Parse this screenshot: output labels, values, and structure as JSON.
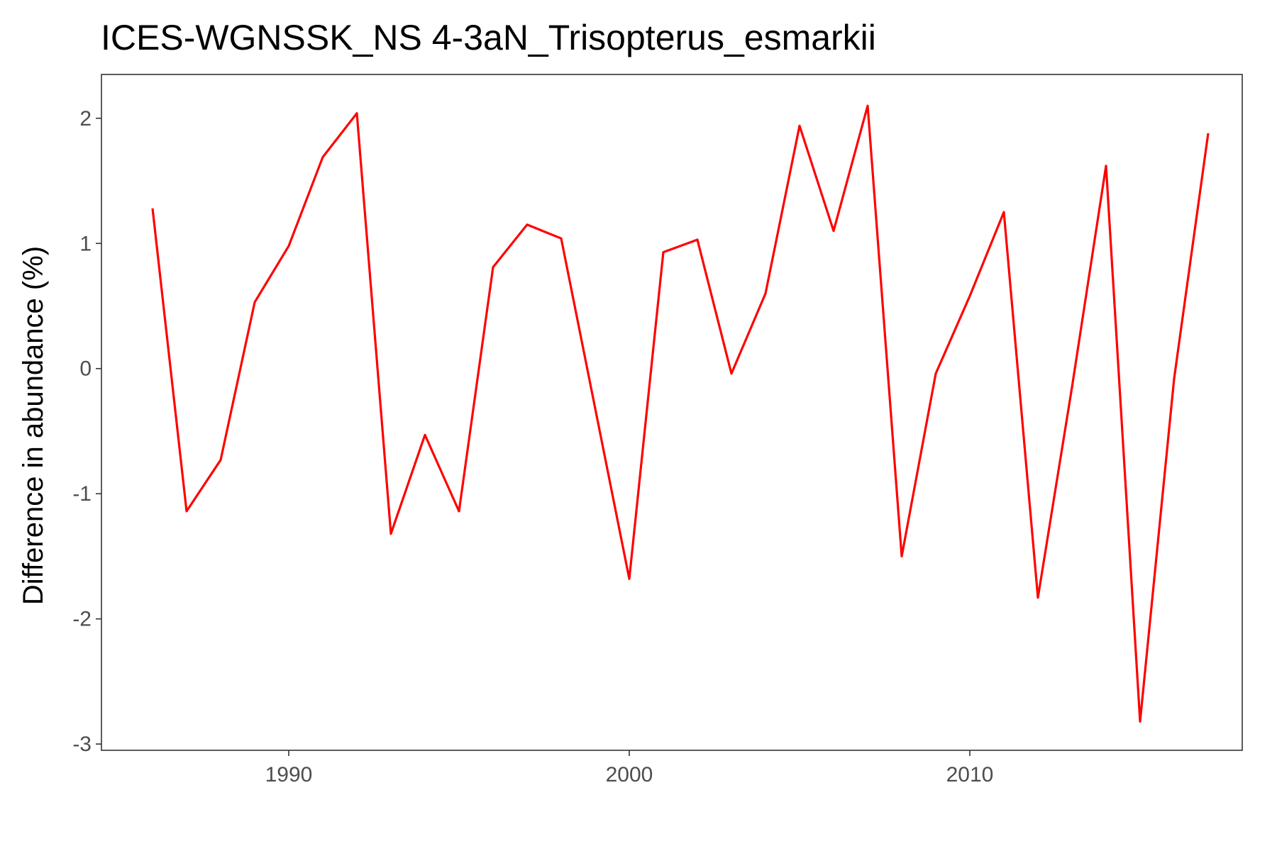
{
  "chart_data": {
    "type": "line",
    "title": "ICES-WGNSSK_NS 4-3aN_Trisopterus_esmarkii",
    "xlabel": "",
    "ylabel": "Difference in abundance (%)",
    "xlim": [
      1984.5,
      2018.0
    ],
    "ylim": [
      -3.05,
      2.35
    ],
    "x_ticks": [
      1990,
      2000,
      2010
    ],
    "y_ticks": [
      -3,
      -2,
      -1,
      0,
      1,
      2
    ],
    "grid": false,
    "legend": "none",
    "colors": {
      "line": "#ff0000",
      "axis": "#333333",
      "tick_text": "#4d4d4d",
      "background": "#ffffff"
    },
    "series": [
      {
        "x": [
          1986,
          1987,
          1988,
          1989,
          1990,
          1991,
          1992,
          1993,
          1994,
          1995,
          1996,
          1997,
          1998,
          1999,
          2000,
          2001,
          2002,
          2003,
          2004,
          2005,
          2006,
          2007,
          2008,
          2009,
          2010,
          2011,
          2012,
          2013,
          2014,
          2015,
          2016,
          2017
        ],
        "values": [
          1.28,
          -1.14,
          -0.73,
          0.53,
          0.98,
          1.69,
          2.04,
          -1.32,
          -0.53,
          -1.14,
          0.81,
          1.15,
          1.04,
          -0.32,
          -1.68,
          0.93,
          1.03,
          -0.04,
          0.6,
          1.94,
          1.1,
          2.1,
          -1.5,
          -0.04,
          0.58,
          1.25,
          -1.83,
          -0.15,
          1.62,
          -2.82,
          -0.08,
          1.88
        ]
      }
    ]
  }
}
